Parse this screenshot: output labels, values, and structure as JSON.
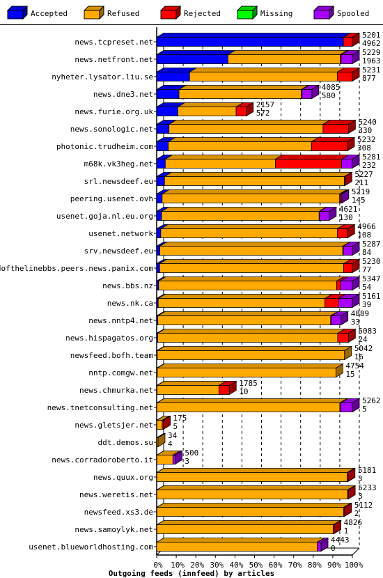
{
  "chart_data": {
    "type": "bar",
    "orientation": "horizontal",
    "stacked": true,
    "style": "3d",
    "title": "Outgoing feeds (innfeed) by articles",
    "xlim": [
      0,
      100
    ],
    "x_ticks": [
      "0%",
      "10%",
      "20%",
      "30%",
      "40%",
      "50%",
      "60%",
      "70%",
      "80%",
      "90%",
      "100%"
    ],
    "grid": "vertical dashed",
    "legend_position": "top",
    "series": [
      {
        "name": "Accepted",
        "color": "#0000ff"
      },
      {
        "name": "Refused",
        "color": "#ffaa00"
      },
      {
        "name": "Rejected",
        "color": "#ff0000"
      },
      {
        "name": "Missing",
        "color": "#00ff00"
      },
      {
        "name": "Spooled",
        "color": "#aa00ff"
      }
    ],
    "rows": [
      {
        "label": "news.tcpreset.net",
        "total": "5201",
        "accepted": "4962",
        "segments": [
          95.4,
          0,
          4.6,
          0,
          0
        ]
      },
      {
        "label": "news.netfront.net",
        "total": "5229",
        "accepted": "1963",
        "segments": [
          36.4,
          57.4,
          0.5,
          0,
          5.7
        ]
      },
      {
        "label": "nyheter.lysator.liu.se",
        "total": "5231",
        "accepted": "877",
        "segments": [
          16.8,
          75.5,
          7.7,
          0,
          0
        ]
      },
      {
        "label": "news.dne3.net",
        "total": "4085",
        "accepted": "580",
        "segments": [
          11.4,
          62.5,
          0.4,
          0,
          5.0
        ]
      },
      {
        "label": "news.furie.org.uk",
        "total": "2157",
        "accepted": "572",
        "segments": [
          10.8,
          29.8,
          5.2,
          0,
          0
        ]
      },
      {
        "label": "news.sonologic.net",
        "total": "5240",
        "accepted": "330",
        "segments": [
          6.3,
          78.7,
          13.0,
          0,
          0
        ]
      },
      {
        "label": "photonic.trudheim.com",
        "total": "5232",
        "accepted": "308",
        "segments": [
          5.9,
          73.2,
          18.4,
          0,
          0
        ]
      },
      {
        "label": "m68k.vk3heg.net",
        "total": "5281",
        "accepted": "232",
        "segments": [
          4.4,
          56.3,
          33.8,
          0,
          5.5
        ]
      },
      {
        "label": "srl.newsdeef.eu",
        "total": "5227",
        "accepted": "211",
        "segments": [
          4.0,
          91.9,
          0.3,
          0,
          0
        ]
      },
      {
        "label": "peering.usenet.ovh",
        "total": "5219",
        "accepted": "145",
        "segments": [
          2.8,
          90.7,
          0.6,
          0,
          0.5
        ]
      },
      {
        "label": "usenet.goja.nl.eu.org",
        "total": "4621",
        "accepted": "130",
        "segments": [
          2.5,
          80.5,
          0.2,
          0,
          5.0
        ]
      },
      {
        "label": "usenet.network",
        "total": "4966",
        "accepted": "108",
        "segments": [
          2.1,
          90.2,
          5.3,
          0,
          0
        ]
      },
      {
        "label": "srv.newsdeef.eu",
        "total": "5287",
        "accepted": "84",
        "segments": [
          1.6,
          93.5,
          0.3,
          0,
          4.6
        ]
      },
      {
        "label": "endofthelinebbs.peers.news.panix.com",
        "total": "5230",
        "accepted": "77",
        "segments": [
          1.5,
          94.1,
          4.4,
          0,
          0
        ]
      },
      {
        "label": "news.bbs.nz",
        "total": "5347",
        "accepted": "54",
        "segments": [
          1.0,
          91.0,
          2.0,
          0,
          6.0
        ]
      },
      {
        "label": "news.nk.ca",
        "total": "5161",
        "accepted": "39",
        "segments": [
          0.8,
          85.2,
          7.0,
          0,
          7.0
        ]
      },
      {
        "label": "news.nntp4.net",
        "total": "4889",
        "accepted": "33",
        "segments": [
          0.6,
          88.3,
          0.3,
          0,
          5.0
        ]
      },
      {
        "label": "news.hispagatos.org",
        "total": "5083",
        "accepted": "24",
        "segments": [
          0.5,
          92.0,
          5.5,
          0,
          0
        ]
      },
      {
        "label": "newsfeed.bofh.team",
        "total": "5042",
        "accepted": "16",
        "segments": [
          0.3,
          95.7,
          0,
          0,
          0
        ]
      },
      {
        "label": "nntp.comgw.net",
        "total": "4754",
        "accepted": "15",
        "segments": [
          0.3,
          91.3,
          0,
          0,
          0
        ]
      },
      {
        "label": "news.chmurka.net",
        "total": "1785",
        "accepted": "10",
        "segments": [
          0.2,
          31.6,
          5.3,
          0,
          0
        ]
      },
      {
        "label": "news.tnetconsulting.net",
        "total": "5262",
        "accepted": "5",
        "segments": [
          0.1,
          93.5,
          0.4,
          0,
          6.0
        ]
      },
      {
        "label": "news.gletsjer.net",
        "total": "175",
        "accepted": "5",
        "segments": [
          0.1,
          2.7,
          0.6,
          0,
          0
        ]
      },
      {
        "label": "ddt.demos.su",
        "total": "34",
        "accepted": "4",
        "segments": [
          0.1,
          0.6,
          0,
          0,
          0
        ]
      },
      {
        "label": "news.corradoroberto.it",
        "total": "500",
        "accepted": "3",
        "segments": [
          0.1,
          8.2,
          0,
          0,
          1.1
        ]
      },
      {
        "label": "news.quux.org",
        "total": "5181",
        "accepted": "3",
        "segments": [
          0.1,
          97.3,
          0.4,
          0,
          0
        ]
      },
      {
        "label": "news.weretis.net",
        "total": "5233",
        "accepted": "3",
        "segments": [
          0.1,
          97.5,
          0.3,
          0,
          0
        ]
      },
      {
        "label": "newsfeed.xs3.de",
        "total": "5112",
        "accepted": "2",
        "segments": [
          0.1,
          95.5,
          0.4,
          0,
          0
        ]
      },
      {
        "label": "news.samoylyk.net",
        "total": "4826",
        "accepted": "1",
        "segments": [
          0.1,
          90.2,
          0.3,
          0,
          0
        ]
      },
      {
        "label": "usenet.blueworldhosting.com",
        "total": "4443",
        "accepted": "0",
        "segments": [
          0,
          82.1,
          0,
          0,
          1.9
        ]
      }
    ]
  }
}
